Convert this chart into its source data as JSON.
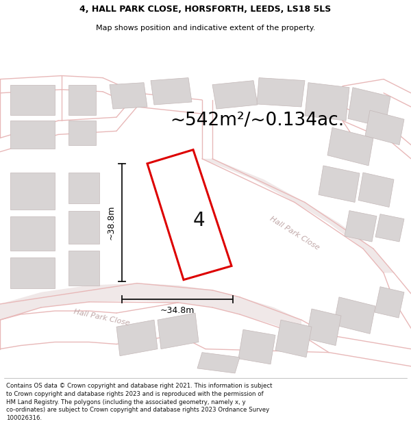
{
  "title_line1": "4, HALL PARK CLOSE, HORSFORTH, LEEDS, LS18 5LS",
  "title_line2": "Map shows position and indicative extent of the property.",
  "area_text": "~542m²/~0.134ac.",
  "plot_number": "4",
  "dim_width": "~34.8m",
  "dim_height": "~38.8m",
  "road_label_lower": "Hall Park Close",
  "road_label_upper": "Hall Park Close",
  "footer_text_lines": [
    "Contains OS data © Crown copyright and database right 2021. This information is subject",
    "to Crown copyright and database rights 2023 and is reproduced with the permission of",
    "HM Land Registry. The polygons (including the associated geometry, namely x, y",
    "co-ordinates) are subject to Crown copyright and database rights 2023 Ordnance Survey",
    "100026316."
  ],
  "bg_color": "#f7f3f3",
  "road_color": "#e8b8b8",
  "road_fill": "#f7f3f3",
  "building_color": "#d8d4d4",
  "building_edge_color": "#c4b8b8",
  "plot_outline_color": "#dd0000",
  "plot_fill_color": "#ffffff",
  "dim_line_color": "#111111",
  "title_fontsize": 9,
  "subtitle_fontsize": 8,
  "area_fontsize": 19,
  "footer_fontsize": 6.2,
  "map_xlim": [
    0,
    600
  ],
  "map_ylim": [
    0,
    490
  ]
}
